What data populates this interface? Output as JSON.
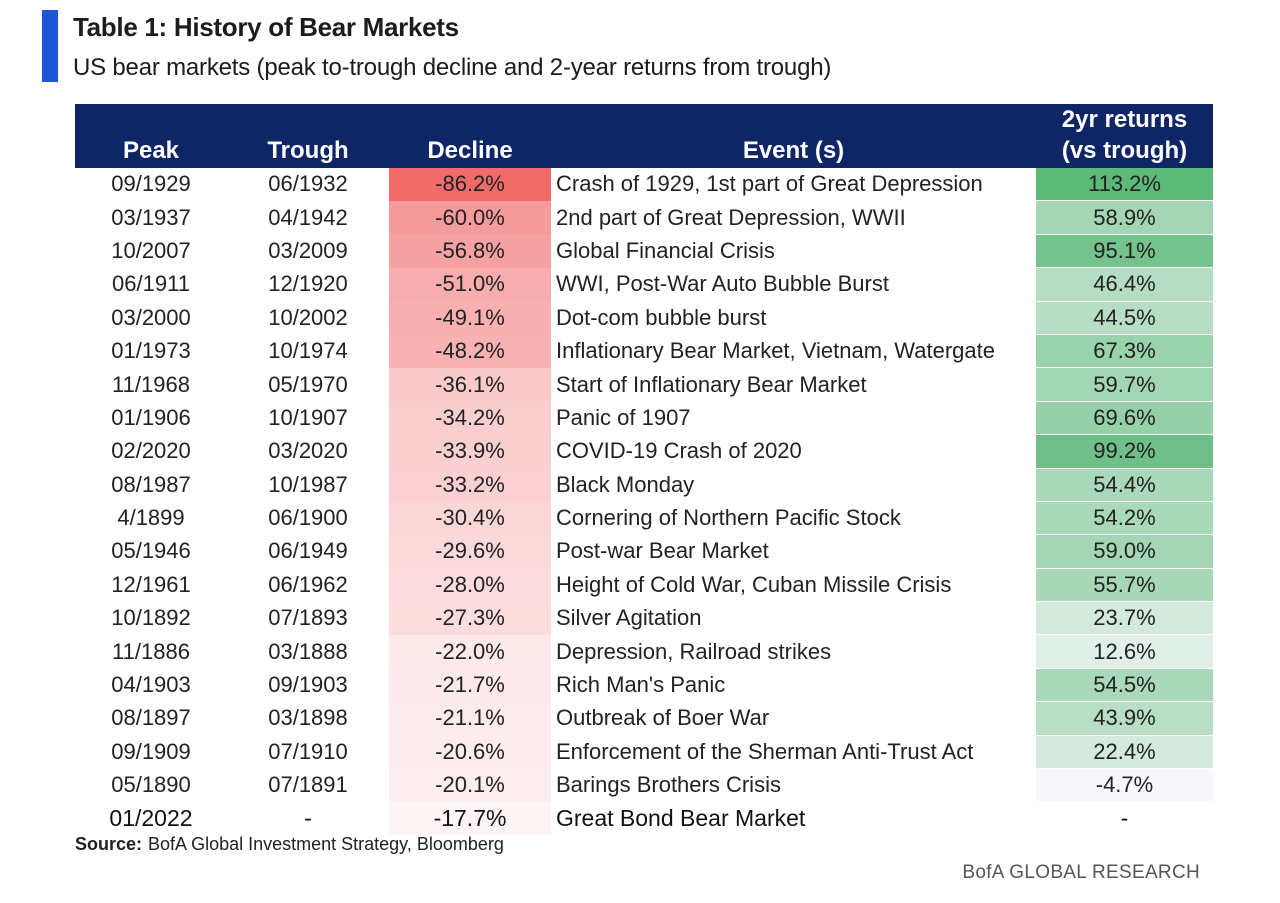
{
  "header": {
    "title": "Table 1: History of Bear Markets",
    "subtitle": "US bear markets (peak to-trough decline and 2-year returns from trough)"
  },
  "table": {
    "columns": {
      "peak": "Peak",
      "trough": "Trough",
      "decline": "Decline",
      "event": "Event (s)",
      "returns_line1": "2yr returns",
      "returns_line2": "(vs trough)"
    },
    "rows": [
      {
        "peak": "09/1929",
        "trough": "06/1932",
        "decline": "-86.2%",
        "event": "Crash of 1929, 1st part of Great Depression",
        "returns": "113.2%",
        "decline_num": -86.2,
        "returns_num": 113.2
      },
      {
        "peak": "03/1937",
        "trough": "04/1942",
        "decline": "-60.0%",
        "event": "2nd part of Great Depression, WWII",
        "returns": "58.9%",
        "decline_num": -60.0,
        "returns_num": 58.9
      },
      {
        "peak": "10/2007",
        "trough": "03/2009",
        "decline": "-56.8%",
        "event": "Global Financial Crisis",
        "returns": "95.1%",
        "decline_num": -56.8,
        "returns_num": 95.1
      },
      {
        "peak": "06/1911",
        "trough": "12/1920",
        "decline": "-51.0%",
        "event": "WWI, Post-War Auto Bubble Burst",
        "returns": "46.4%",
        "decline_num": -51.0,
        "returns_num": 46.4
      },
      {
        "peak": "03/2000",
        "trough": "10/2002",
        "decline": "-49.1%",
        "event": "Dot-com bubble burst",
        "returns": "44.5%",
        "decline_num": -49.1,
        "returns_num": 44.5
      },
      {
        "peak": "01/1973",
        "trough": "10/1974",
        "decline": "-48.2%",
        "event": "Inflationary  Bear Market, Vietnam, Watergate",
        "returns": "67.3%",
        "decline_num": -48.2,
        "returns_num": 67.3
      },
      {
        "peak": "11/1968",
        "trough": "05/1970",
        "decline": "-36.1%",
        "event": "Start of Inflationary  Bear Market",
        "returns": "59.7%",
        "decline_num": -36.1,
        "returns_num": 59.7
      },
      {
        "peak": "01/1906",
        "trough": "10/1907",
        "decline": "-34.2%",
        "event": "Panic of 1907",
        "returns": "69.6%",
        "decline_num": -34.2,
        "returns_num": 69.6
      },
      {
        "peak": "02/2020",
        "trough": "03/2020",
        "decline": "-33.9%",
        "event": "COVID-19 Crash of 2020",
        "returns": "99.2%",
        "decline_num": -33.9,
        "returns_num": 99.2
      },
      {
        "peak": "08/1987",
        "trough": "10/1987",
        "decline": "-33.2%",
        "event": "Black Monday",
        "returns": "54.4%",
        "decline_num": -33.2,
        "returns_num": 54.4
      },
      {
        "peak": "4/1899",
        "trough": "06/1900",
        "decline": "-30.4%",
        "event": "Cornering of Northern Pacific Stock",
        "returns": "54.2%",
        "decline_num": -30.4,
        "returns_num": 54.2
      },
      {
        "peak": "05/1946",
        "trough": "06/1949",
        "decline": "-29.6%",
        "event": "Post-war Bear Market",
        "returns": "59.0%",
        "decline_num": -29.6,
        "returns_num": 59.0
      },
      {
        "peak": "12/1961",
        "trough": "06/1962",
        "decline": "-28.0%",
        "event": "Height of Cold War, Cuban Missile Crisis",
        "returns": "55.7%",
        "decline_num": -28.0,
        "returns_num": 55.7
      },
      {
        "peak": "10/1892",
        "trough": "07/1893",
        "decline": "-27.3%",
        "event": "Silver Agitation",
        "returns": "23.7%",
        "decline_num": -27.3,
        "returns_num": 23.7
      },
      {
        "peak": "11/1886",
        "trough": "03/1888",
        "decline": "-22.0%",
        "event": "Depression, Railroad strikes",
        "returns": "12.6%",
        "decline_num": -22.0,
        "returns_num": 12.6
      },
      {
        "peak": "04/1903",
        "trough": "09/1903",
        "decline": "-21.7%",
        "event": "Rich Man's Panic",
        "returns": "54.5%",
        "decline_num": -21.7,
        "returns_num": 54.5
      },
      {
        "peak": "08/1897",
        "trough": "03/1898",
        "decline": "-21.1%",
        "event": "Outbreak of Boer War",
        "returns": "43.9%",
        "decline_num": -21.1,
        "returns_num": 43.9
      },
      {
        "peak": "09/1909",
        "trough": "07/1910",
        "decline": "-20.6%",
        "event": "Enforcement of the Sherman Anti-Trust Act",
        "returns": "22.4%",
        "decline_num": -20.6,
        "returns_num": 22.4
      },
      {
        "peak": "05/1890",
        "trough": "07/1891",
        "decline": "-20.1%",
        "event": "Barings Brothers Crisis",
        "returns": "-4.7%",
        "decline_num": -20.1,
        "returns_num": -4.7
      },
      {
        "peak": "01/2022",
        "trough": "-",
        "decline": "-17.7%",
        "event": "Great Bond Bear Market",
        "returns": "-",
        "decline_num": -17.7,
        "returns_num": null
      }
    ]
  },
  "colors": {
    "header_bg": "#0e2566",
    "accent": "#1a56d6",
    "decline_strong": "#f26b6b",
    "returns_strong": "#5cb978"
  },
  "footer": {
    "source_label": "Source:",
    "source_text": "BofA Global Investment Strategy, Bloomberg",
    "brand": "BofA GLOBAL RESEARCH"
  }
}
